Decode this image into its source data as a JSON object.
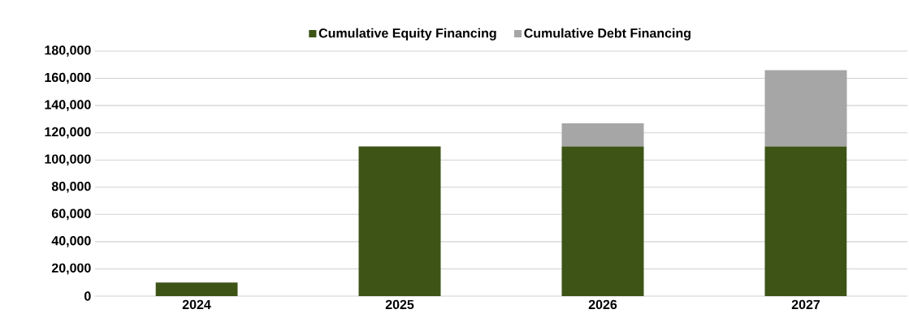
{
  "chart_data": {
    "type": "bar",
    "stacked": true,
    "categories": [
      "2024",
      "2025",
      "2026",
      "2027"
    ],
    "series": [
      {
        "name": "Cumulative Equity Financing",
        "color": "#3d5416",
        "values": [
          10000,
          110000,
          110000,
          110000
        ]
      },
      {
        "name": "Cumulative Debt Financing",
        "color": "#a6a6a6",
        "values": [
          null,
          null,
          17000,
          56000
        ]
      }
    ],
    "ylim": [
      0,
      180000
    ],
    "yticks": [
      {
        "value": 0,
        "label": "0"
      },
      {
        "value": 20000,
        "label": "20,000"
      },
      {
        "value": 40000,
        "label": "40,000"
      },
      {
        "value": 60000,
        "label": "60,000"
      },
      {
        "value": 80000,
        "label": "80,000"
      },
      {
        "value": 100000,
        "label": "100,000"
      },
      {
        "value": 120000,
        "label": "120,000"
      },
      {
        "value": 140000,
        "label": "140,000"
      },
      {
        "value": 160000,
        "label": "160,000"
      },
      {
        "value": 180000,
        "label": "180,000"
      }
    ],
    "grid": "y",
    "legend": "top"
  }
}
